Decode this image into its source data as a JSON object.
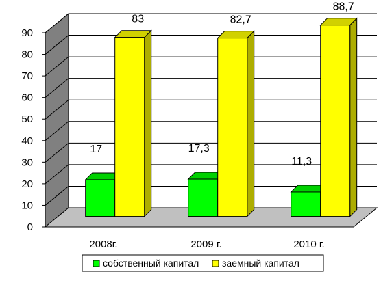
{
  "chart_data": {
    "type": "bar",
    "categories": [
      "2008г.",
      "2009 г.",
      "2010 г."
    ],
    "series": [
      {
        "name": "собственный капитал",
        "values": [
          17,
          17.3,
          11.3
        ],
        "labels": [
          "17",
          "17,3",
          "11,3"
        ],
        "color": "#00ff00"
      },
      {
        "name": "заемный капитал",
        "values": [
          83,
          82.7,
          88.7
        ],
        "labels": [
          "83",
          "82,7",
          "88,7"
        ],
        "color": "#ffff00"
      }
    ],
    "yticks": [
      "0",
      "10",
      "20",
      "30",
      "40",
      "50",
      "60",
      "70",
      "80",
      "90"
    ],
    "ylim": [
      0,
      90
    ],
    "grid": true,
    "three_d": true,
    "legend_position": "bottom",
    "title": "",
    "xlabel": "",
    "ylabel": "",
    "colors": {
      "wall": "#808080",
      "floor": "#c0c0c0",
      "gridline": "#000000"
    }
  }
}
